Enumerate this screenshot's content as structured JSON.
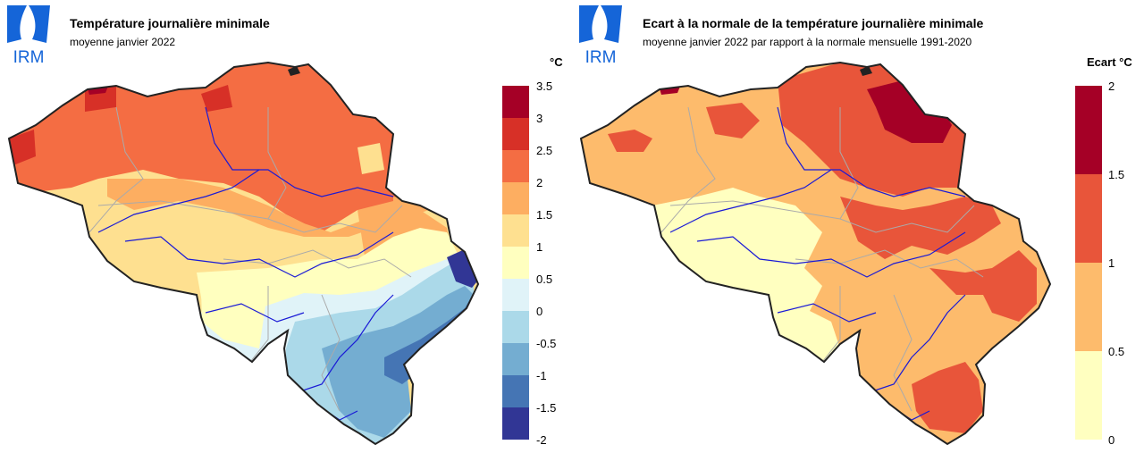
{
  "colors": {
    "left_scale": [
      "#313695",
      "#4575b4",
      "#74add1",
      "#abd9e9",
      "#e0f3f8",
      "#ffffbf",
      "#fee090",
      "#fdae61",
      "#f46d43",
      "#d73027",
      "#a50026"
    ],
    "right_scale": [
      "#ffffc0",
      "#fdbb6c",
      "#e8553a",
      "#a50026"
    ],
    "border": "#222222",
    "rivers": "#1a1ad6",
    "regions": "#aaaaaa",
    "logo": "#1565d8"
  },
  "left": {
    "logo_text": "IRM",
    "title": "Température journalière minimale",
    "subtitle": "moyenne janvier 2022",
    "unit": "°C",
    "legend_ticks": [
      "3.5",
      "3",
      "2.5",
      "2",
      "1.5",
      "1",
      "0.5",
      "0",
      "-0.5",
      "-1",
      "-1.5",
      "-2"
    ]
  },
  "right": {
    "logo_text": "IRM",
    "title": "Ecart à la normale de la température journalière minimale",
    "subtitle": "moyenne janvier 2022 par rapport à la normale mensuelle 1991-2020",
    "unit": "Ecart °C",
    "legend_ticks": [
      "2",
      "1.5",
      "1",
      "0.5",
      "0"
    ]
  }
}
